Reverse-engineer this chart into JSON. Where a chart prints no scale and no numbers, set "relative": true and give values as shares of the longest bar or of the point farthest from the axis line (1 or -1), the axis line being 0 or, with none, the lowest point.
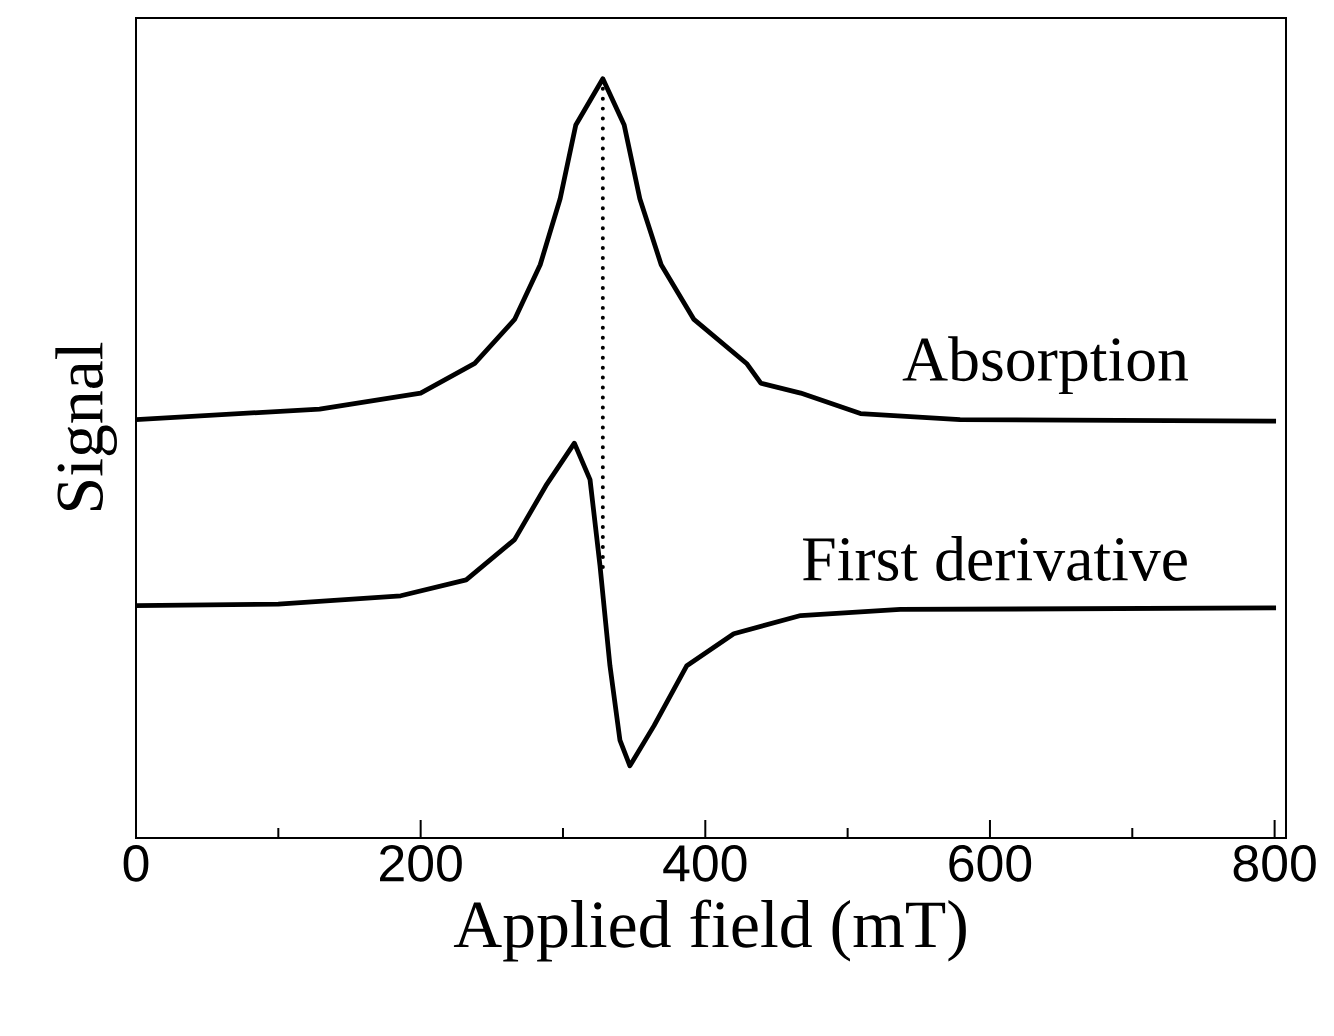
{
  "chart_data": {
    "type": "line",
    "xlabel": "Applied field (mT)",
    "ylabel": "Signal",
    "relative": true,
    "xlim": [
      0,
      808
    ],
    "xticks": [
      0,
      {
        "value": 100,
        "label": null
      },
      200,
      {
        "value": 300,
        "label": null
      },
      400,
      {
        "value": 500,
        "label": null
      },
      600,
      {
        "value": 700,
        "label": null
      },
      800
    ],
    "series": [
      {
        "name": "Absorption",
        "color": "#000000",
        "line_style": "solid",
        "x": [
          0,
          129,
          200,
          238,
          266,
          284,
          298,
          309,
          328,
          343,
          354,
          369,
          392,
          429,
          439,
          467,
          509,
          579,
          801
        ],
        "values": [
          0.551,
          0.565,
          0.586,
          0.625,
          0.683,
          0.755,
          0.842,
          0.939,
          1.0,
          0.939,
          0.842,
          0.755,
          0.683,
          0.625,
          0.599,
          0.586,
          0.559,
          0.551,
          0.549
        ]
      },
      {
        "name": "First derivative",
        "color": "#000000",
        "line_style": "solid",
        "x": [
          0,
          100,
          186,
          232,
          266,
          288,
          308,
          319,
          326,
          333,
          340,
          347,
          364,
          387,
          420,
          467,
          537,
          801
        ],
        "values": [
          0.306,
          0.308,
          0.319,
          0.34,
          0.393,
          0.464,
          0.52,
          0.472,
          0.359,
          0.227,
          0.129,
          0.095,
          0.148,
          0.227,
          0.269,
          0.293,
          0.301,
          0.303
        ]
      },
      {
        "color": "#000000",
        "line_style": "dotted",
        "x": [
          328,
          328
        ],
        "values": [
          1.0,
          0.348
        ]
      }
    ]
  }
}
